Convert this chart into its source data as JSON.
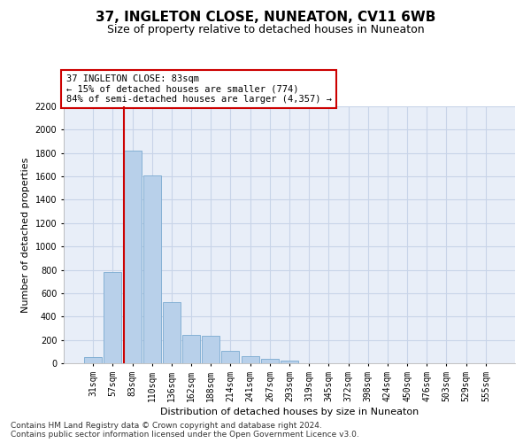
{
  "title": "37, INGLETON CLOSE, NUNEATON, CV11 6WB",
  "subtitle": "Size of property relative to detached houses in Nuneaton",
  "xlabel": "Distribution of detached houses by size in Nuneaton",
  "ylabel": "Number of detached properties",
  "categories": [
    "31sqm",
    "57sqm",
    "83sqm",
    "110sqm",
    "136sqm",
    "162sqm",
    "188sqm",
    "214sqm",
    "241sqm",
    "267sqm",
    "293sqm",
    "319sqm",
    "345sqm",
    "372sqm",
    "398sqm",
    "424sqm",
    "450sqm",
    "476sqm",
    "503sqm",
    "529sqm",
    "555sqm"
  ],
  "values": [
    55,
    780,
    1820,
    1610,
    520,
    240,
    235,
    105,
    60,
    35,
    20,
    0,
    0,
    0,
    0,
    0,
    0,
    0,
    0,
    0,
    0
  ],
  "bar_color": "#b8d0ea",
  "bar_edge_color": "#7aaad0",
  "highlight_bar_index": 2,
  "highlight_line_color": "#cc0000",
  "annotation_text": "37 INGLETON CLOSE: 83sqm\n← 15% of detached houses are smaller (774)\n84% of semi-detached houses are larger (4,357) →",
  "annotation_box_facecolor": "#ffffff",
  "annotation_box_edgecolor": "#cc0000",
  "ylim": [
    0,
    2200
  ],
  "yticks": [
    0,
    200,
    400,
    600,
    800,
    1000,
    1200,
    1400,
    1600,
    1800,
    2000,
    2200
  ],
  "grid_color": "#c8d4e8",
  "background_color": "#e8eef8",
  "footer_line1": "Contains HM Land Registry data © Crown copyright and database right 2024.",
  "footer_line2": "Contains public sector information licensed under the Open Government Licence v3.0.",
  "title_fontsize": 11,
  "subtitle_fontsize": 9,
  "axis_label_fontsize": 8,
  "ylabel_fontsize": 8,
  "tick_fontsize": 7,
  "annotation_fontsize": 7.5,
  "footer_fontsize": 6.5
}
